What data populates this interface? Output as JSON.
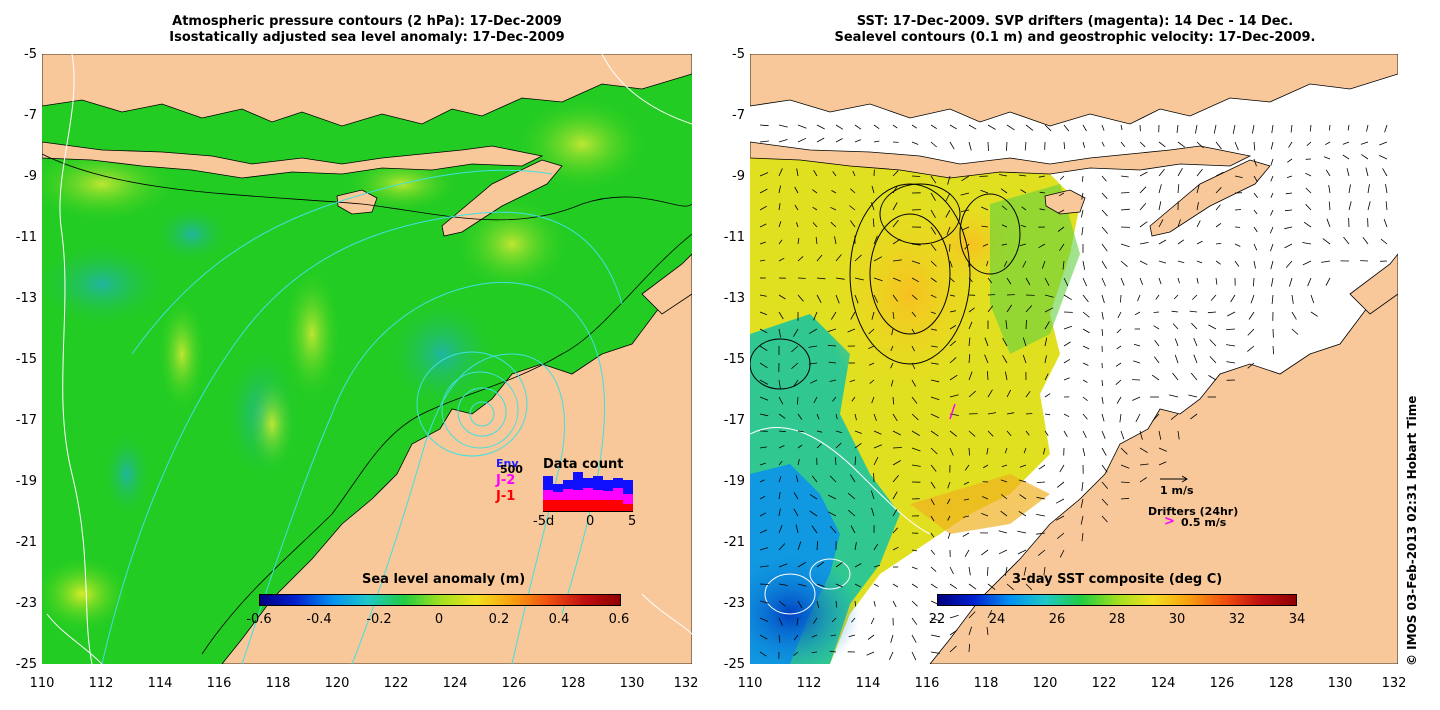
{
  "left_panel": {
    "title_line1": "Atmospheric pressure contours (2 hPa): 17-Dec-2009",
    "title_line2": "Isostatically adjusted sea level anomaly: 17-Dec-2009",
    "y_ticks": [
      "-5",
      "-7",
      "-9",
      "-11",
      "-13",
      "-15",
      "-17",
      "-19",
      "-21",
      "-23",
      "-25"
    ],
    "x_ticks": [
      "110",
      "112",
      "114",
      "116",
      "118",
      "120",
      "122",
      "124",
      "126",
      "128",
      "130",
      "132"
    ],
    "colorbar": {
      "title": "Sea level anomaly (m)",
      "ticks": [
        "-0.6",
        "-0.4",
        "-0.2",
        "0",
        "0.2",
        "0.4",
        "0.6"
      ]
    },
    "data_count": {
      "title": "Data count",
      "legend": [
        {
          "label": "Env",
          "color": "#2020ff"
        },
        {
          "label": "500",
          "color": "#000000"
        },
        {
          "label": "J-2",
          "color": "#ff00ff"
        },
        {
          "label": "J-1",
          "color": "#ff0000"
        }
      ],
      "axis_ticks": [
        "-5d",
        "0",
        "5"
      ]
    }
  },
  "right_panel": {
    "title_line1": "SST: 17-Dec-2009. SVP drifters (magenta): 14 Dec - 14 Dec.",
    "title_line2": "Sealevel contours (0.1 m) and geostrophic velocity: 17-Dec-2009.",
    "y_ticks": [
      "-5",
      "-7",
      "-9",
      "-11",
      "-13",
      "-15",
      "-17",
      "-19",
      "-21",
      "-23",
      "-25"
    ],
    "x_ticks": [
      "110",
      "112",
      "114",
      "116",
      "118",
      "120",
      "122",
      "124",
      "126",
      "128",
      "130",
      "132"
    ],
    "colorbar": {
      "title": "3-day SST composite (deg C)",
      "ticks": [
        "22",
        "24",
        "26",
        "28",
        "30",
        "32",
        "34"
      ]
    },
    "velocity_scale_label": "1 m/s",
    "drifters_label": "Drifters (24hr)",
    "drifter_scale_label": "0.5 m/s",
    "drifter_marker": ">"
  },
  "credit": "© IMOS 03-Feb-2013 02:31 Hobart Time",
  "colors": {
    "land": "#f8c89a",
    "ocean_green": "#22cc22",
    "missing": "#ffffff",
    "contour_cyan": "#40e0e0"
  }
}
